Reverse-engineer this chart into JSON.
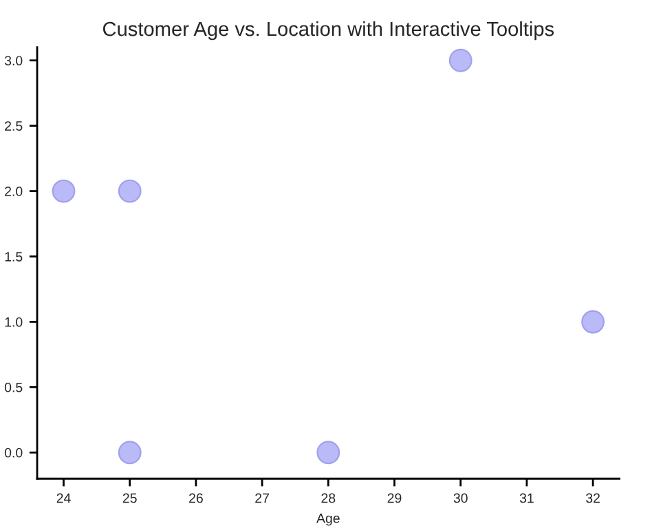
{
  "chart_data": {
    "type": "scatter",
    "title": "Customer Age vs. Location with Interactive Tooltips",
    "xlabel": "Age",
    "x": [
      24,
      25,
      25,
      28,
      30,
      32
    ],
    "series": [
      {
        "color": "#b3b3f7",
        "values": [
          2,
          2,
          0,
          0,
          3,
          1
        ]
      }
    ],
    "xlim": [
      23.6,
      32.4
    ],
    "xticks": [
      24,
      25,
      26,
      27,
      28,
      29,
      30,
      31,
      32
    ],
    "ylim": [
      -0.2,
      3.1
    ],
    "yticks": [
      {
        "value": 0,
        "label": "0.0"
      },
      {
        "value": 0.5,
        "label": "0.5"
      },
      {
        "value": 1,
        "label": "1.0"
      },
      {
        "value": 1.5,
        "label": "1.5"
      },
      {
        "value": 2,
        "label": "2.0"
      },
      {
        "value": 2.5,
        "label": "2.5"
      },
      {
        "value": 3,
        "label": "3.0"
      }
    ],
    "grid": false,
    "marker": "circle"
  }
}
